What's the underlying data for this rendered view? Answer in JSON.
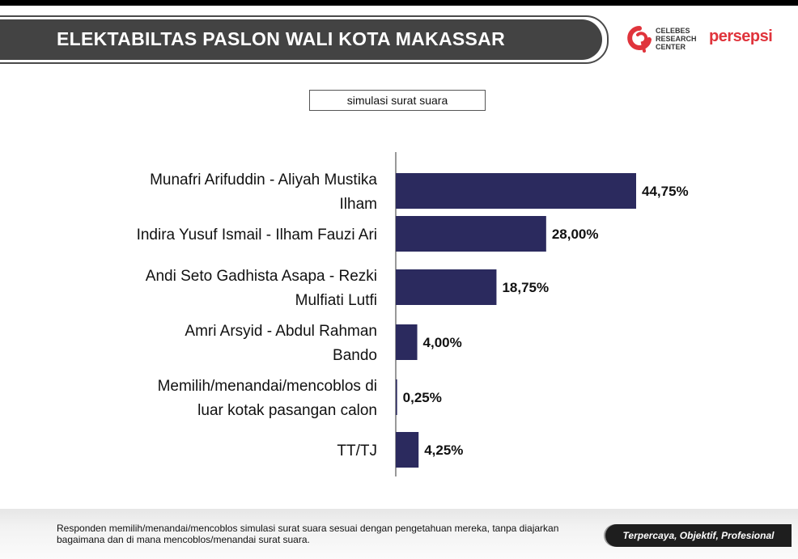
{
  "header": {
    "title": "ELEKTABILTAS PASLON WALI KOTA MAKASSAR",
    "subtitle": "simulasi surat suara"
  },
  "logos": {
    "celebes": {
      "text": "CELEBES\nRESEARCH\nCENTER",
      "icon": "celebes-research-center-logo"
    },
    "persepsi": {
      "text": "persepsi",
      "icon": "persepsi-logo"
    }
  },
  "colors": {
    "bar": "#2b2a5e",
    "banner": "#434343",
    "accent_red": "#e0343c"
  },
  "chart_data": {
    "type": "bar",
    "orientation": "horizontal",
    "categories": [
      [
        "Munafri Arifuddin - Aliyah Mustika",
        "Ilham"
      ],
      [
        "Indira Yusuf Ismail - Ilham Fauzi Ari"
      ],
      [
        "Andi Seto Gadhista Asapa - Rezki",
        "Mulfiati Lutfi"
      ],
      [
        "Amri Arsyid - Abdul Rahman",
        "Bando"
      ],
      [
        "Memilih/menandai/mencoblos di",
        "luar kotak pasangan calon"
      ],
      [
        "TT/TJ"
      ]
    ],
    "values": [
      44.75,
      28.0,
      18.75,
      4.0,
      0.25,
      4.25
    ],
    "value_labels": [
      "44,75%",
      "28,00%",
      "18,75%",
      "4,00%",
      "0,25%",
      "4,25%"
    ],
    "xlim": [
      0,
      50
    ],
    "title": "ELEKTABILTAS PASLON WALI KOTA MAKASSAR",
    "subtitle": "simulasi surat suara",
    "grid": false,
    "legend": "none"
  },
  "footer": {
    "note": "Responden memilih/menandai/mencoblos simulasi surat suara sesuai dengan pengetahuan mereka, tanpa diajarkan bagaimana dan di mana mencoblos/menandai surat suara.",
    "tagline": "Terpercaya, Objektif, Profesional"
  }
}
